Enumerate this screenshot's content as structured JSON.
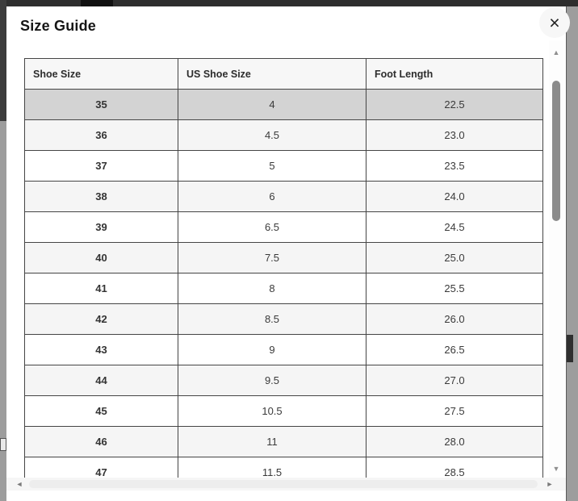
{
  "modal": {
    "title": "Size Guide"
  },
  "icons": {
    "close": "×",
    "scroll_up": "▲",
    "scroll_down": "▼",
    "scroll_left": "◄",
    "scroll_right": "►"
  },
  "colors": {
    "highlight_row": "#d3d3d3",
    "stripe_row": "#f5f5f5",
    "header_bg": "#f7f7f7",
    "table_border": "#454545",
    "modal_bg": "#ffffff",
    "backdrop_gray": "#9d9d9d",
    "backdrop_dark": "#2e2e2e",
    "scroll_thumb": "#8b8b8b"
  },
  "table": {
    "columns": [
      "Shoe Size",
      "US Shoe Size",
      "Foot Length"
    ],
    "rows": [
      {
        "shoe_size": "35",
        "us_size": "4",
        "foot_length": "22.5",
        "highlighted": true
      },
      {
        "shoe_size": "36",
        "us_size": "4.5",
        "foot_length": "23.0",
        "highlighted": false
      },
      {
        "shoe_size": "37",
        "us_size": "5",
        "foot_length": "23.5",
        "highlighted": false
      },
      {
        "shoe_size": "38",
        "us_size": "6",
        "foot_length": "24.0",
        "highlighted": false
      },
      {
        "shoe_size": "39",
        "us_size": "6.5",
        "foot_length": "24.5",
        "highlighted": false
      },
      {
        "shoe_size": "40",
        "us_size": "7.5",
        "foot_length": "25.0",
        "highlighted": false
      },
      {
        "shoe_size": "41",
        "us_size": "8",
        "foot_length": "25.5",
        "highlighted": false
      },
      {
        "shoe_size": "42",
        "us_size": "8.5",
        "foot_length": "26.0",
        "highlighted": false
      },
      {
        "shoe_size": "43",
        "us_size": "9",
        "foot_length": "26.5",
        "highlighted": false
      },
      {
        "shoe_size": "44",
        "us_size": "9.5",
        "foot_length": "27.0",
        "highlighted": false
      },
      {
        "shoe_size": "45",
        "us_size": "10.5",
        "foot_length": "27.5",
        "highlighted": false
      },
      {
        "shoe_size": "46",
        "us_size": "11",
        "foot_length": "28.0",
        "highlighted": false
      },
      {
        "shoe_size": "47",
        "us_size": "11.5",
        "foot_length": "28.5",
        "highlighted": false
      }
    ]
  }
}
